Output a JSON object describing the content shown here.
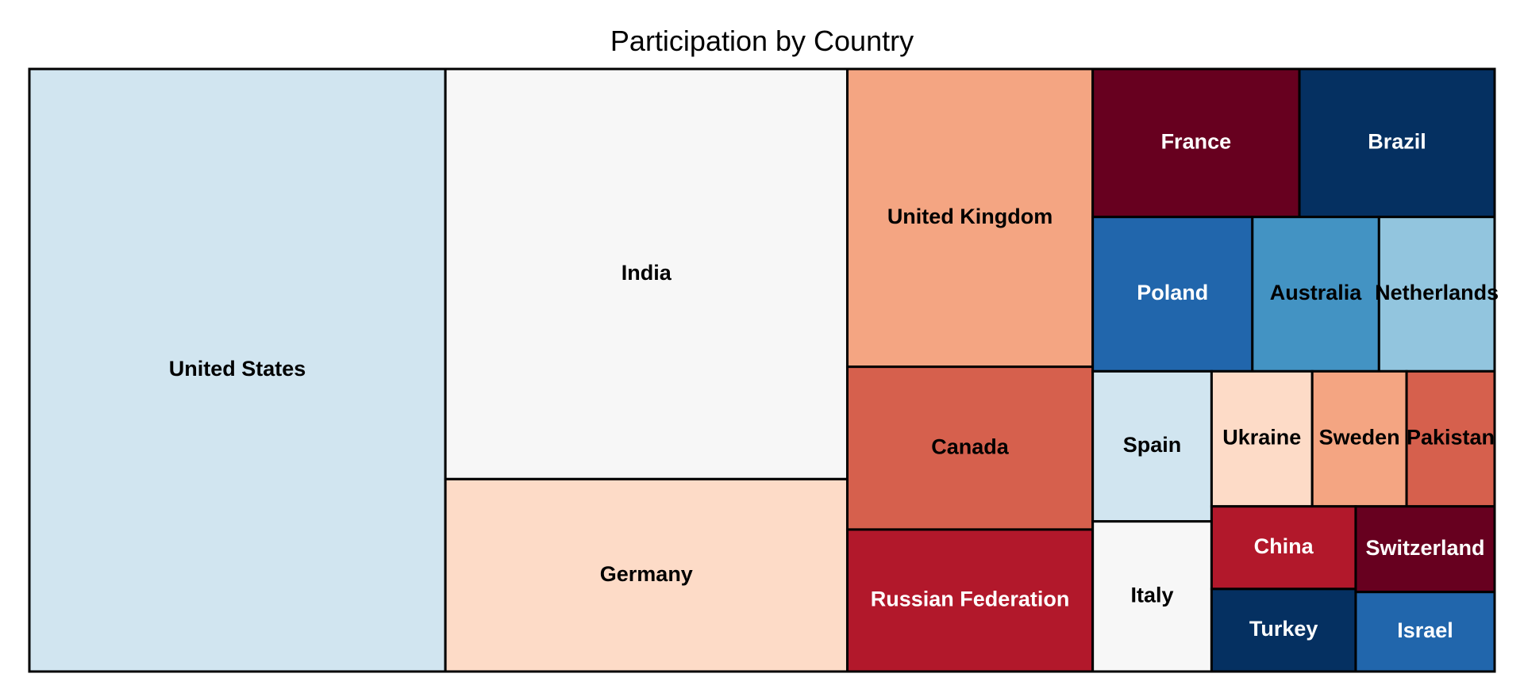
{
  "chart_data": {
    "type": "treemap",
    "title": "Participation by Country",
    "palette": [
      "#67001f",
      "#b2182b",
      "#d6604d",
      "#f4a582",
      "#fddbc7",
      "#f7f7f7",
      "#d1e5f0",
      "#92c5de",
      "#4393c3",
      "#2166ac",
      "#053061"
    ],
    "items": [
      {
        "label": "United States",
        "value": 29.5,
        "color": "#d1e5f0",
        "text_color": "#000000"
      },
      {
        "label": "India",
        "value": 19.4,
        "color": "#f7f7f7",
        "text_color": "#000000"
      },
      {
        "label": "Germany",
        "value": 9.1,
        "color": "#fddbc7",
        "text_color": "#000000"
      },
      {
        "label": "United Kingdom",
        "value": 8.6,
        "color": "#f4a582",
        "text_color": "#000000"
      },
      {
        "label": "Canada",
        "value": 4.7,
        "color": "#d6604d",
        "text_color": "#000000"
      },
      {
        "label": "Russian Federation",
        "value": 4.1,
        "color": "#b2182b",
        "text_color": "#ffffff"
      },
      {
        "label": "France",
        "value": 3.6,
        "color": "#67001f",
        "text_color": "#ffffff"
      },
      {
        "label": "Brazil",
        "value": 3.4,
        "color": "#053061",
        "text_color": "#ffffff"
      },
      {
        "label": "Poland",
        "value": 2.9,
        "color": "#2166ac",
        "text_color": "#ffffff"
      },
      {
        "label": "Australia",
        "value": 2.3,
        "color": "#4393c3",
        "text_color": "#000000"
      },
      {
        "label": "Netherlands",
        "value": 2.1,
        "color": "#92c5de",
        "text_color": "#000000"
      },
      {
        "label": "Spain",
        "value": 2.1,
        "color": "#d1e5f0",
        "text_color": "#000000"
      },
      {
        "label": "Italy",
        "value": 2.1,
        "color": "#f7f7f7",
        "text_color": "#000000"
      },
      {
        "label": "Ukraine",
        "value": 1.6,
        "color": "#fddbc7",
        "text_color": "#000000"
      },
      {
        "label": "Sweden",
        "value": 1.5,
        "color": "#f4a582",
        "text_color": "#000000"
      },
      {
        "label": "Pakistan",
        "value": 1.4,
        "color": "#d6604d",
        "text_color": "#000000"
      },
      {
        "label": "China",
        "value": 1.4,
        "color": "#b2182b",
        "text_color": "#ffffff"
      },
      {
        "label": "Turkey",
        "value": 1.4,
        "color": "#053061",
        "text_color": "#ffffff"
      },
      {
        "label": "Switzerland",
        "value": 1.4,
        "color": "#67001f",
        "text_color": "#ffffff"
      },
      {
        "label": "Israel",
        "value": 1.3,
        "color": "#2166ac",
        "text_color": "#ffffff"
      }
    ],
    "legend": "none",
    "grid": false
  }
}
